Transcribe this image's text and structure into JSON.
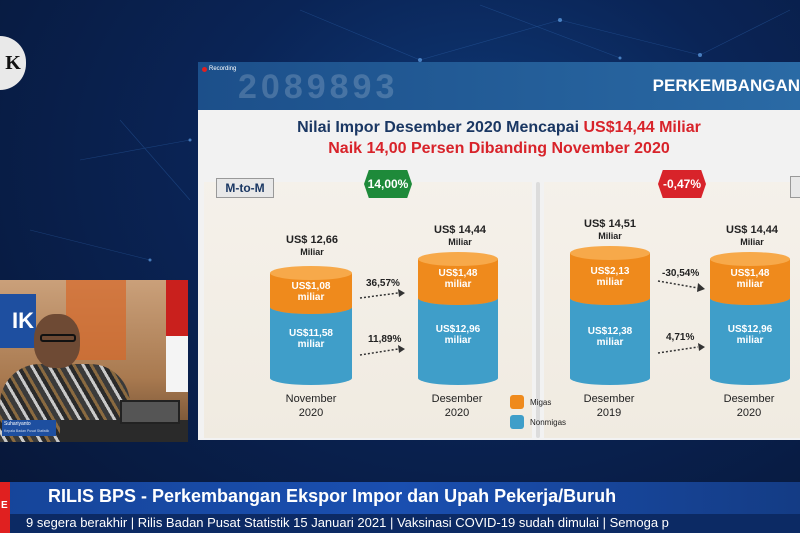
{
  "window": {
    "recording_label": "Recording"
  },
  "slide": {
    "header_title": "PERKEMBANGAN",
    "header_deco": "2089893",
    "headline": {
      "line1_prefix": "Nilai Impor Desember 2020 Mencapai ",
      "line1_highlight": "US$14,44 Miliar",
      "line2": "Naik 14,00 Persen Dibanding November 2020"
    },
    "mtom_label": "M-to-M",
    "badge_green": "14,00%",
    "badge_red": "-0,47%",
    "colors": {
      "migas": "#ef8a1c",
      "nonmigas": "#3f9ec9",
      "green": "#1e8a3a",
      "red": "#d8232a"
    },
    "bars": [
      {
        "total": "US$ 12,66",
        "unit": "Miliar",
        "migas": "US$1,08",
        "migas_unit": "miliar",
        "nonmigas": "US$11,58",
        "nonmigas_unit": "miliar",
        "period": "November",
        "year": "2020"
      },
      {
        "total": "US$ 14,44",
        "unit": "Miliar",
        "migas": "US$1,48",
        "migas_unit": "miliar",
        "nonmigas": "US$12,96",
        "nonmigas_unit": "miliar",
        "period": "Desember",
        "year": "2020"
      },
      {
        "total": "US$ 14,51",
        "unit": "Miliar",
        "migas": "US$2,13",
        "migas_unit": "miliar",
        "nonmigas": "US$12,38",
        "nonmigas_unit": "miliar",
        "period": "Desember",
        "year": "2019"
      },
      {
        "total": "US$ 14,44",
        "unit": "Miliar",
        "migas": "US$1,48",
        "migas_unit": "miliar",
        "nonmigas": "US$12,96",
        "nonmigas_unit": "miliar",
        "period": "Desember",
        "year": "2020"
      }
    ],
    "changes": {
      "left_migas": "36,57%",
      "left_nonmigas": "11,89%",
      "right_migas": "-30,54%",
      "right_nonmigas": "4,71%"
    },
    "legend": {
      "migas": "Migas",
      "nonmigas": "Nonmigas"
    }
  },
  "presenter": {
    "name": "Suhariyanto",
    "title": "Kepala Badan Pusat Statistik",
    "logo_text": "IK"
  },
  "lower_third": {
    "tag": "E",
    "title": "RILIS BPS  - Perkembangan Ekspor Impor dan Upah Pekerja/Buruh",
    "ticker": "9 segera berakhir | Rilis Badan Pusat Statistik 15 Januari 2021 | Vaksinasi COVID-19 sudah dimulai | Semoga p"
  },
  "logo_letter": "K"
}
